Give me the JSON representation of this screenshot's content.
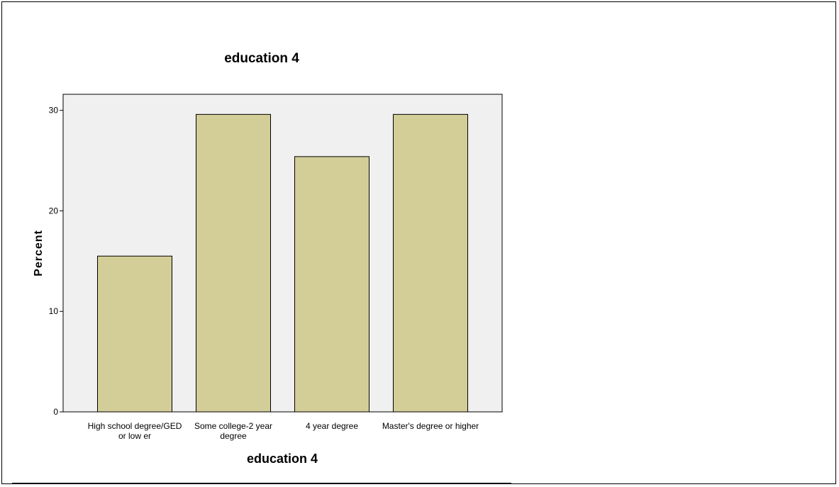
{
  "chart_data": {
    "type": "bar",
    "title": "education 4",
    "xlabel": "education 4",
    "ylabel": "Percent",
    "categories": [
      [
        "High school degree/GED",
        "or low er"
      ],
      [
        "Some college-2 year",
        "degree"
      ],
      [
        "4 year degree"
      ],
      [
        "Master's degree or higher"
      ]
    ],
    "values": [
      15.5,
      29.6,
      25.4,
      29.6
    ],
    "yticks": [
      0,
      10,
      20,
      30
    ],
    "ylim": [
      0,
      31.6
    ],
    "grid": false,
    "colors": {
      "bar_fill": "#d3cd98",
      "bar_stroke": "#000000",
      "plot_background": "#f0f0f0"
    }
  }
}
